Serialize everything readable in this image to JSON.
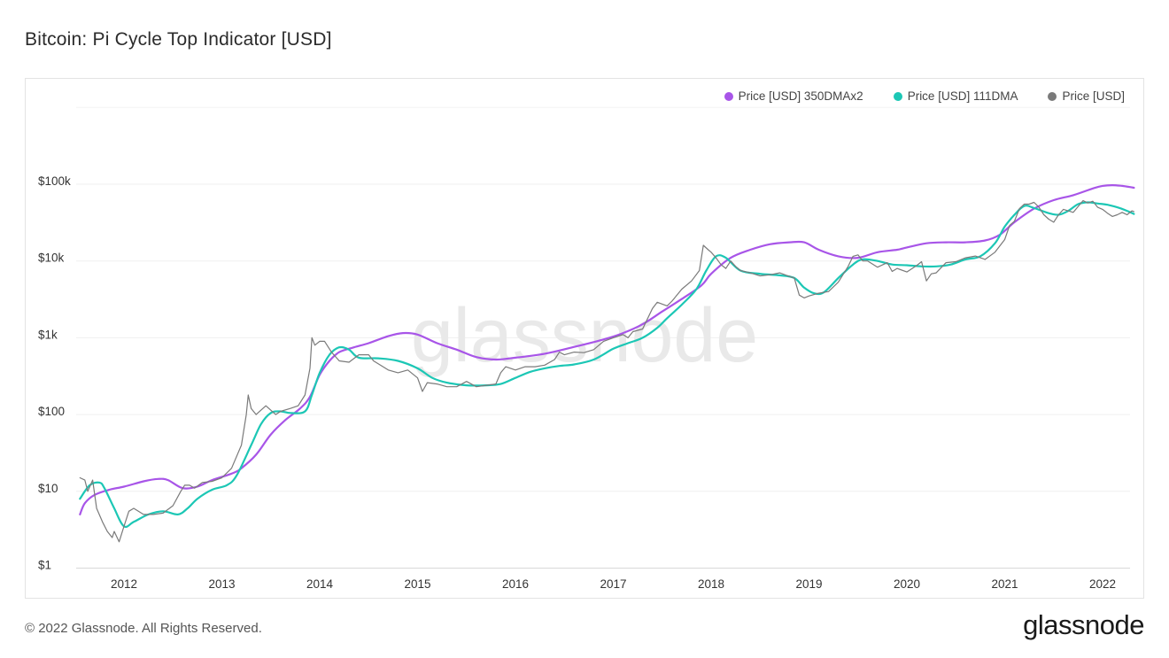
{
  "title": "Bitcoin: Pi Cycle Top Indicator [USD]",
  "watermark": "glassnode",
  "footer": "© 2022 Glassnode. All Rights Reserved.",
  "brand": "glassnode",
  "legend": [
    {
      "label": "Price [USD] 350DMAx2",
      "color": "#a855e8"
    },
    {
      "label": "Price [USD] 111DMA",
      "color": "#1cc7b5"
    },
    {
      "label": "Price [USD]",
      "color": "#7a7a7a"
    }
  ],
  "chart_data": {
    "type": "line",
    "title": "Bitcoin: Pi Cycle Top Indicator [USD]",
    "yscale": "log",
    "ylim": [
      1,
      1000000
    ],
    "xlim": [
      2011.55,
      2022.32
    ],
    "grid": true,
    "legend_position": "top-right",
    "x_ticks": [
      "2012",
      "2013",
      "2014",
      "2015",
      "2016",
      "2017",
      "2018",
      "2019",
      "2020",
      "2021",
      "2022"
    ],
    "y_ticks": [
      {
        "value": 1,
        "label": "$1"
      },
      {
        "value": 10,
        "label": "$10"
      },
      {
        "value": 100,
        "label": "$100"
      },
      {
        "value": 1000,
        "label": "$1k"
      },
      {
        "value": 10000,
        "label": "$10k"
      },
      {
        "value": 100000,
        "label": "$100k"
      }
    ],
    "series": [
      {
        "name": "Price [USD] 350DMAx2",
        "color": "#a855e8",
        "x": [
          2011.55,
          2011.6,
          2011.7,
          2011.85,
          2012.0,
          2012.2,
          2012.35,
          2012.45,
          2012.6,
          2012.75,
          2012.9,
          2013.1,
          2013.2,
          2013.35,
          2013.5,
          2013.65,
          2013.8,
          2013.9,
          2014.0,
          2014.1,
          2014.2,
          2014.35,
          2014.5,
          2014.7,
          2014.85,
          2015.0,
          2015.2,
          2015.4,
          2015.6,
          2015.8,
          2016.0,
          2016.3,
          2016.6,
          2016.9,
          2017.1,
          2017.3,
          2017.5,
          2017.7,
          2017.9,
          2018.0,
          2018.2,
          2018.4,
          2018.6,
          2018.8,
          2018.95,
          2019.1,
          2019.3,
          2019.5,
          2019.7,
          2019.9,
          2020.0,
          2020.2,
          2020.4,
          2020.6,
          2020.8,
          2020.95,
          2021.1,
          2021.3,
          2021.5,
          2021.7,
          2021.9,
          2022.0,
          2022.1,
          2022.2,
          2022.32
        ],
        "values": [
          5,
          7,
          9,
          10.5,
          11.5,
          13.5,
          14.5,
          14,
          11,
          11.5,
          14,
          17,
          20,
          30,
          55,
          85,
          120,
          170,
          330,
          500,
          650,
          750,
          850,
          1050,
          1150,
          1100,
          850,
          700,
          560,
          520,
          550,
          620,
          760,
          950,
          1150,
          1500,
          2200,
          3200,
          4800,
          6800,
          11000,
          14000,
          16500,
          17500,
          17500,
          14000,
          11500,
          11000,
          13000,
          14000,
          15000,
          17000,
          17500,
          17500,
          18500,
          22000,
          32000,
          48000,
          62000,
          72000,
          88000,
          95000,
          97000,
          95000,
          90000
        ]
      },
      {
        "name": "Price [USD] 111DMA",
        "color": "#1cc7b5",
        "x": [
          2011.55,
          2011.65,
          2011.75,
          2011.8,
          2011.9,
          2012.0,
          2012.1,
          2012.25,
          2012.4,
          2012.55,
          2012.65,
          2012.75,
          2012.9,
          2013.05,
          2013.15,
          2013.3,
          2013.4,
          2013.5,
          2013.6,
          2013.7,
          2013.85,
          2013.92,
          2014.0,
          2014.1,
          2014.2,
          2014.3,
          2014.4,
          2014.6,
          2014.8,
          2015.0,
          2015.15,
          2015.3,
          2015.5,
          2015.7,
          2015.85,
          2016.0,
          2016.15,
          2016.3,
          2016.45,
          2016.6,
          2016.8,
          2017.0,
          2017.15,
          2017.3,
          2017.45,
          2017.55,
          2017.7,
          2017.85,
          2017.95,
          2018.05,
          2018.15,
          2018.3,
          2018.5,
          2018.7,
          2018.85,
          2018.95,
          2019.05,
          2019.15,
          2019.3,
          2019.45,
          2019.55,
          2019.7,
          2019.85,
          2020.0,
          2020.15,
          2020.3,
          2020.45,
          2020.6,
          2020.75,
          2020.9,
          2021.0,
          2021.1,
          2021.2,
          2021.3,
          2021.45,
          2021.55,
          2021.65,
          2021.75,
          2021.85,
          2021.95,
          2022.05,
          2022.15,
          2022.25,
          2022.32
        ],
        "values": [
          8,
          12,
          13,
          11,
          6,
          3.5,
          4,
          5,
          5.5,
          5,
          6,
          8,
          10.5,
          12,
          16,
          40,
          75,
          105,
          110,
          105,
          110,
          180,
          350,
          600,
          750,
          700,
          550,
          540,
          500,
          400,
          300,
          260,
          240,
          240,
          250,
          300,
          360,
          400,
          430,
          450,
          520,
          720,
          850,
          1000,
          1350,
          1800,
          2700,
          4300,
          7500,
          11500,
          11000,
          7500,
          6800,
          6500,
          6000,
          4500,
          3800,
          3900,
          6000,
          9000,
          10500,
          10000,
          9000,
          8800,
          8500,
          8500,
          9000,
          10500,
          11500,
          17000,
          28000,
          40000,
          52000,
          49000,
          42000,
          40000,
          45000,
          55000,
          58000,
          56000,
          54000,
          50000,
          45000,
          41000
        ]
      },
      {
        "name": "Price [USD]",
        "color": "#7a7a7a",
        "x": [
          2011.55,
          2011.6,
          2011.63,
          2011.68,
          2011.72,
          2011.78,
          2011.83,
          2011.88,
          2011.9,
          2011.95,
          2012.0,
          2012.05,
          2012.1,
          2012.2,
          2012.3,
          2012.4,
          2012.5,
          2012.58,
          2012.62,
          2012.67,
          2012.72,
          2012.8,
          2012.9,
          2013.0,
          2013.1,
          2013.2,
          2013.25,
          2013.27,
          2013.3,
          2013.35,
          2013.45,
          2013.55,
          2013.6,
          2013.7,
          2013.78,
          2013.85,
          2013.9,
          2013.92,
          2013.95,
          2014.0,
          2014.05,
          2014.12,
          2014.2,
          2014.3,
          2014.4,
          2014.5,
          2014.55,
          2014.7,
          2014.8,
          2014.9,
          2015.0,
          2015.05,
          2015.1,
          2015.2,
          2015.3,
          2015.4,
          2015.5,
          2015.6,
          2015.7,
          2015.8,
          2015.85,
          2015.9,
          2016.0,
          2016.1,
          2016.2,
          2016.3,
          2016.4,
          2016.45,
          2016.5,
          2016.6,
          2016.7,
          2016.8,
          2016.9,
          2017.0,
          2017.1,
          2017.15,
          2017.2,
          2017.3,
          2017.4,
          2017.45,
          2017.55,
          2017.6,
          2017.7,
          2017.8,
          2017.88,
          2017.92,
          2017.97,
          2018.0,
          2018.05,
          2018.1,
          2018.15,
          2018.2,
          2018.25,
          2018.3,
          2018.4,
          2018.5,
          2018.6,
          2018.7,
          2018.8,
          2018.85,
          2018.9,
          2018.95,
          2019.0,
          2019.1,
          2019.2,
          2019.3,
          2019.4,
          2019.45,
          2019.5,
          2019.55,
          2019.6,
          2019.7,
          2019.8,
          2019.85,
          2019.9,
          2020.0,
          2020.1,
          2020.15,
          2020.2,
          2020.25,
          2020.3,
          2020.4,
          2020.5,
          2020.6,
          2020.7,
          2020.8,
          2020.9,
          2021.0,
          2021.05,
          2021.1,
          2021.15,
          2021.2,
          2021.25,
          2021.3,
          2021.35,
          2021.4,
          2021.45,
          2021.5,
          2021.55,
          2021.6,
          2021.7,
          2021.8,
          2021.85,
          2021.9,
          2021.95,
          2022.0,
          2022.05,
          2022.1,
          2022.15,
          2022.2,
          2022.25,
          2022.3,
          2022.32
        ],
        "values": [
          15,
          14,
          10,
          14,
          6,
          4,
          3,
          2.5,
          3,
          2.2,
          3.5,
          5.5,
          6,
          5,
          5,
          5.2,
          6.5,
          10,
          12,
          12,
          11,
          13,
          13.5,
          15,
          20,
          40,
          100,
          180,
          120,
          100,
          130,
          100,
          110,
          120,
          130,
          180,
          400,
          1000,
          800,
          900,
          900,
          650,
          500,
          480,
          600,
          600,
          500,
          380,
          350,
          380,
          300,
          200,
          260,
          250,
          230,
          230,
          270,
          230,
          240,
          250,
          350,
          420,
          380,
          420,
          420,
          440,
          520,
          650,
          600,
          650,
          640,
          700,
          900,
          1000,
          1100,
          1000,
          1200,
          1300,
          2400,
          2900,
          2600,
          3000,
          4300,
          5500,
          7500,
          16000,
          14000,
          13000,
          11000,
          9000,
          8000,
          10000,
          8500,
          7500,
          7000,
          6400,
          6600,
          7000,
          6300,
          6000,
          3600,
          3300,
          3500,
          3800,
          4000,
          5300,
          8500,
          11500,
          12000,
          10000,
          10000,
          8300,
          9500,
          7300,
          8000,
          7200,
          8700,
          9800,
          5500,
          6800,
          7000,
          9500,
          9800,
          11000,
          11600,
          10500,
          13000,
          19000,
          29000,
          33000,
          48000,
          55000,
          55000,
          58000,
          50000,
          40000,
          35000,
          32000,
          40000,
          47000,
          43000,
          61000,
          57000,
          60000,
          50000,
          47000,
          42000,
          38000,
          40000,
          43000,
          40000,
          45000,
          44000
        ]
      }
    ]
  }
}
